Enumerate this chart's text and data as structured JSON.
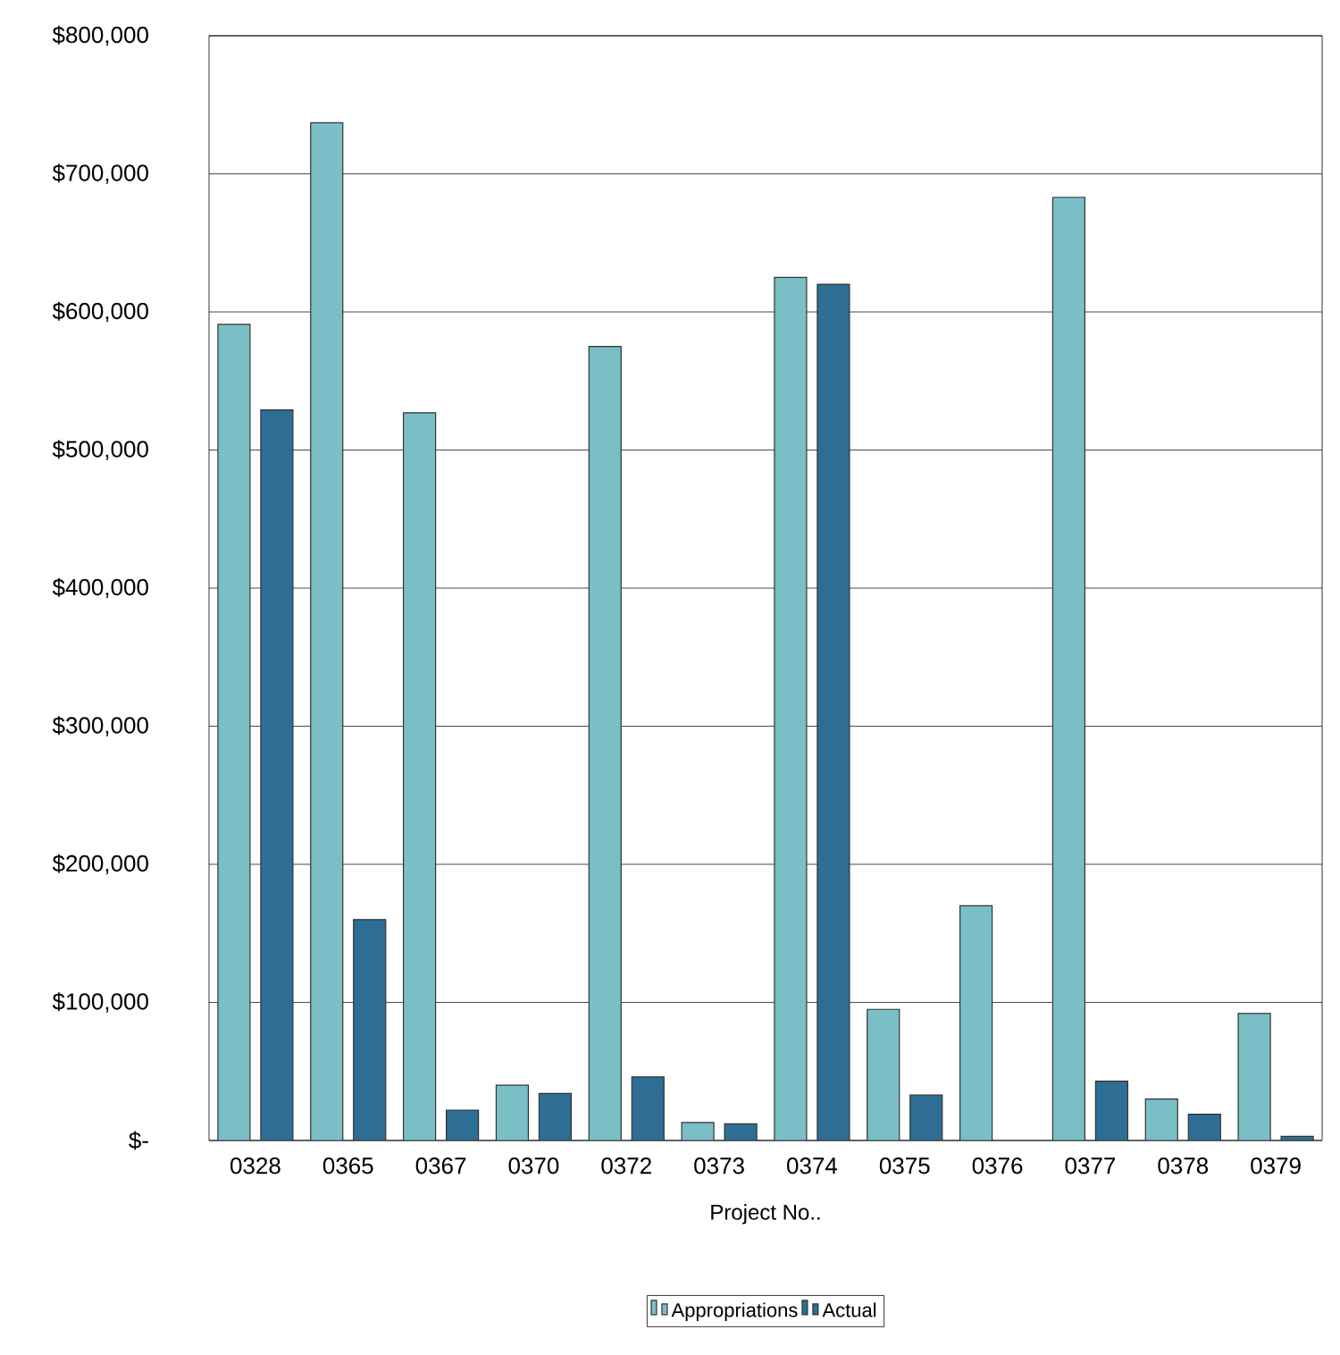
{
  "chart_data": {
    "type": "bar",
    "xlabel": "Project No..",
    "categories": [
      "0328",
      "0365",
      "0367",
      "0370",
      "0372",
      "0373",
      "0374",
      "0375",
      "0376",
      "0377",
      "0378",
      "0379"
    ],
    "series": [
      {
        "name": "Appropriations",
        "color": "#7bbfc6",
        "values": [
          591000,
          737000,
          527000,
          40000,
          575000,
          13000,
          625000,
          95000,
          170000,
          683000,
          30000,
          92000
        ]
      },
      {
        "name": "Actual",
        "color": "#2e6e94",
        "values": [
          529000,
          160000,
          22000,
          34000,
          46000,
          12000,
          620000,
          33000,
          null,
          43000,
          19000,
          3000
        ]
      }
    ],
    "ylim": [
      0,
      800000
    ],
    "yticks": [
      {
        "value": 0,
        "label": "$-"
      },
      {
        "value": 100000,
        "label": "$100,000"
      },
      {
        "value": 200000,
        "label": "$200,000"
      },
      {
        "value": 300000,
        "label": "$300,000"
      },
      {
        "value": 400000,
        "label": "$400,000"
      },
      {
        "value": 500000,
        "label": "$500,000"
      },
      {
        "value": 600000,
        "label": "$600,000"
      },
      {
        "value": 700000,
        "label": "$700,000"
      },
      {
        "value": 800000,
        "label": "$800,000"
      }
    ],
    "grid": "y",
    "legend": "bottom"
  }
}
